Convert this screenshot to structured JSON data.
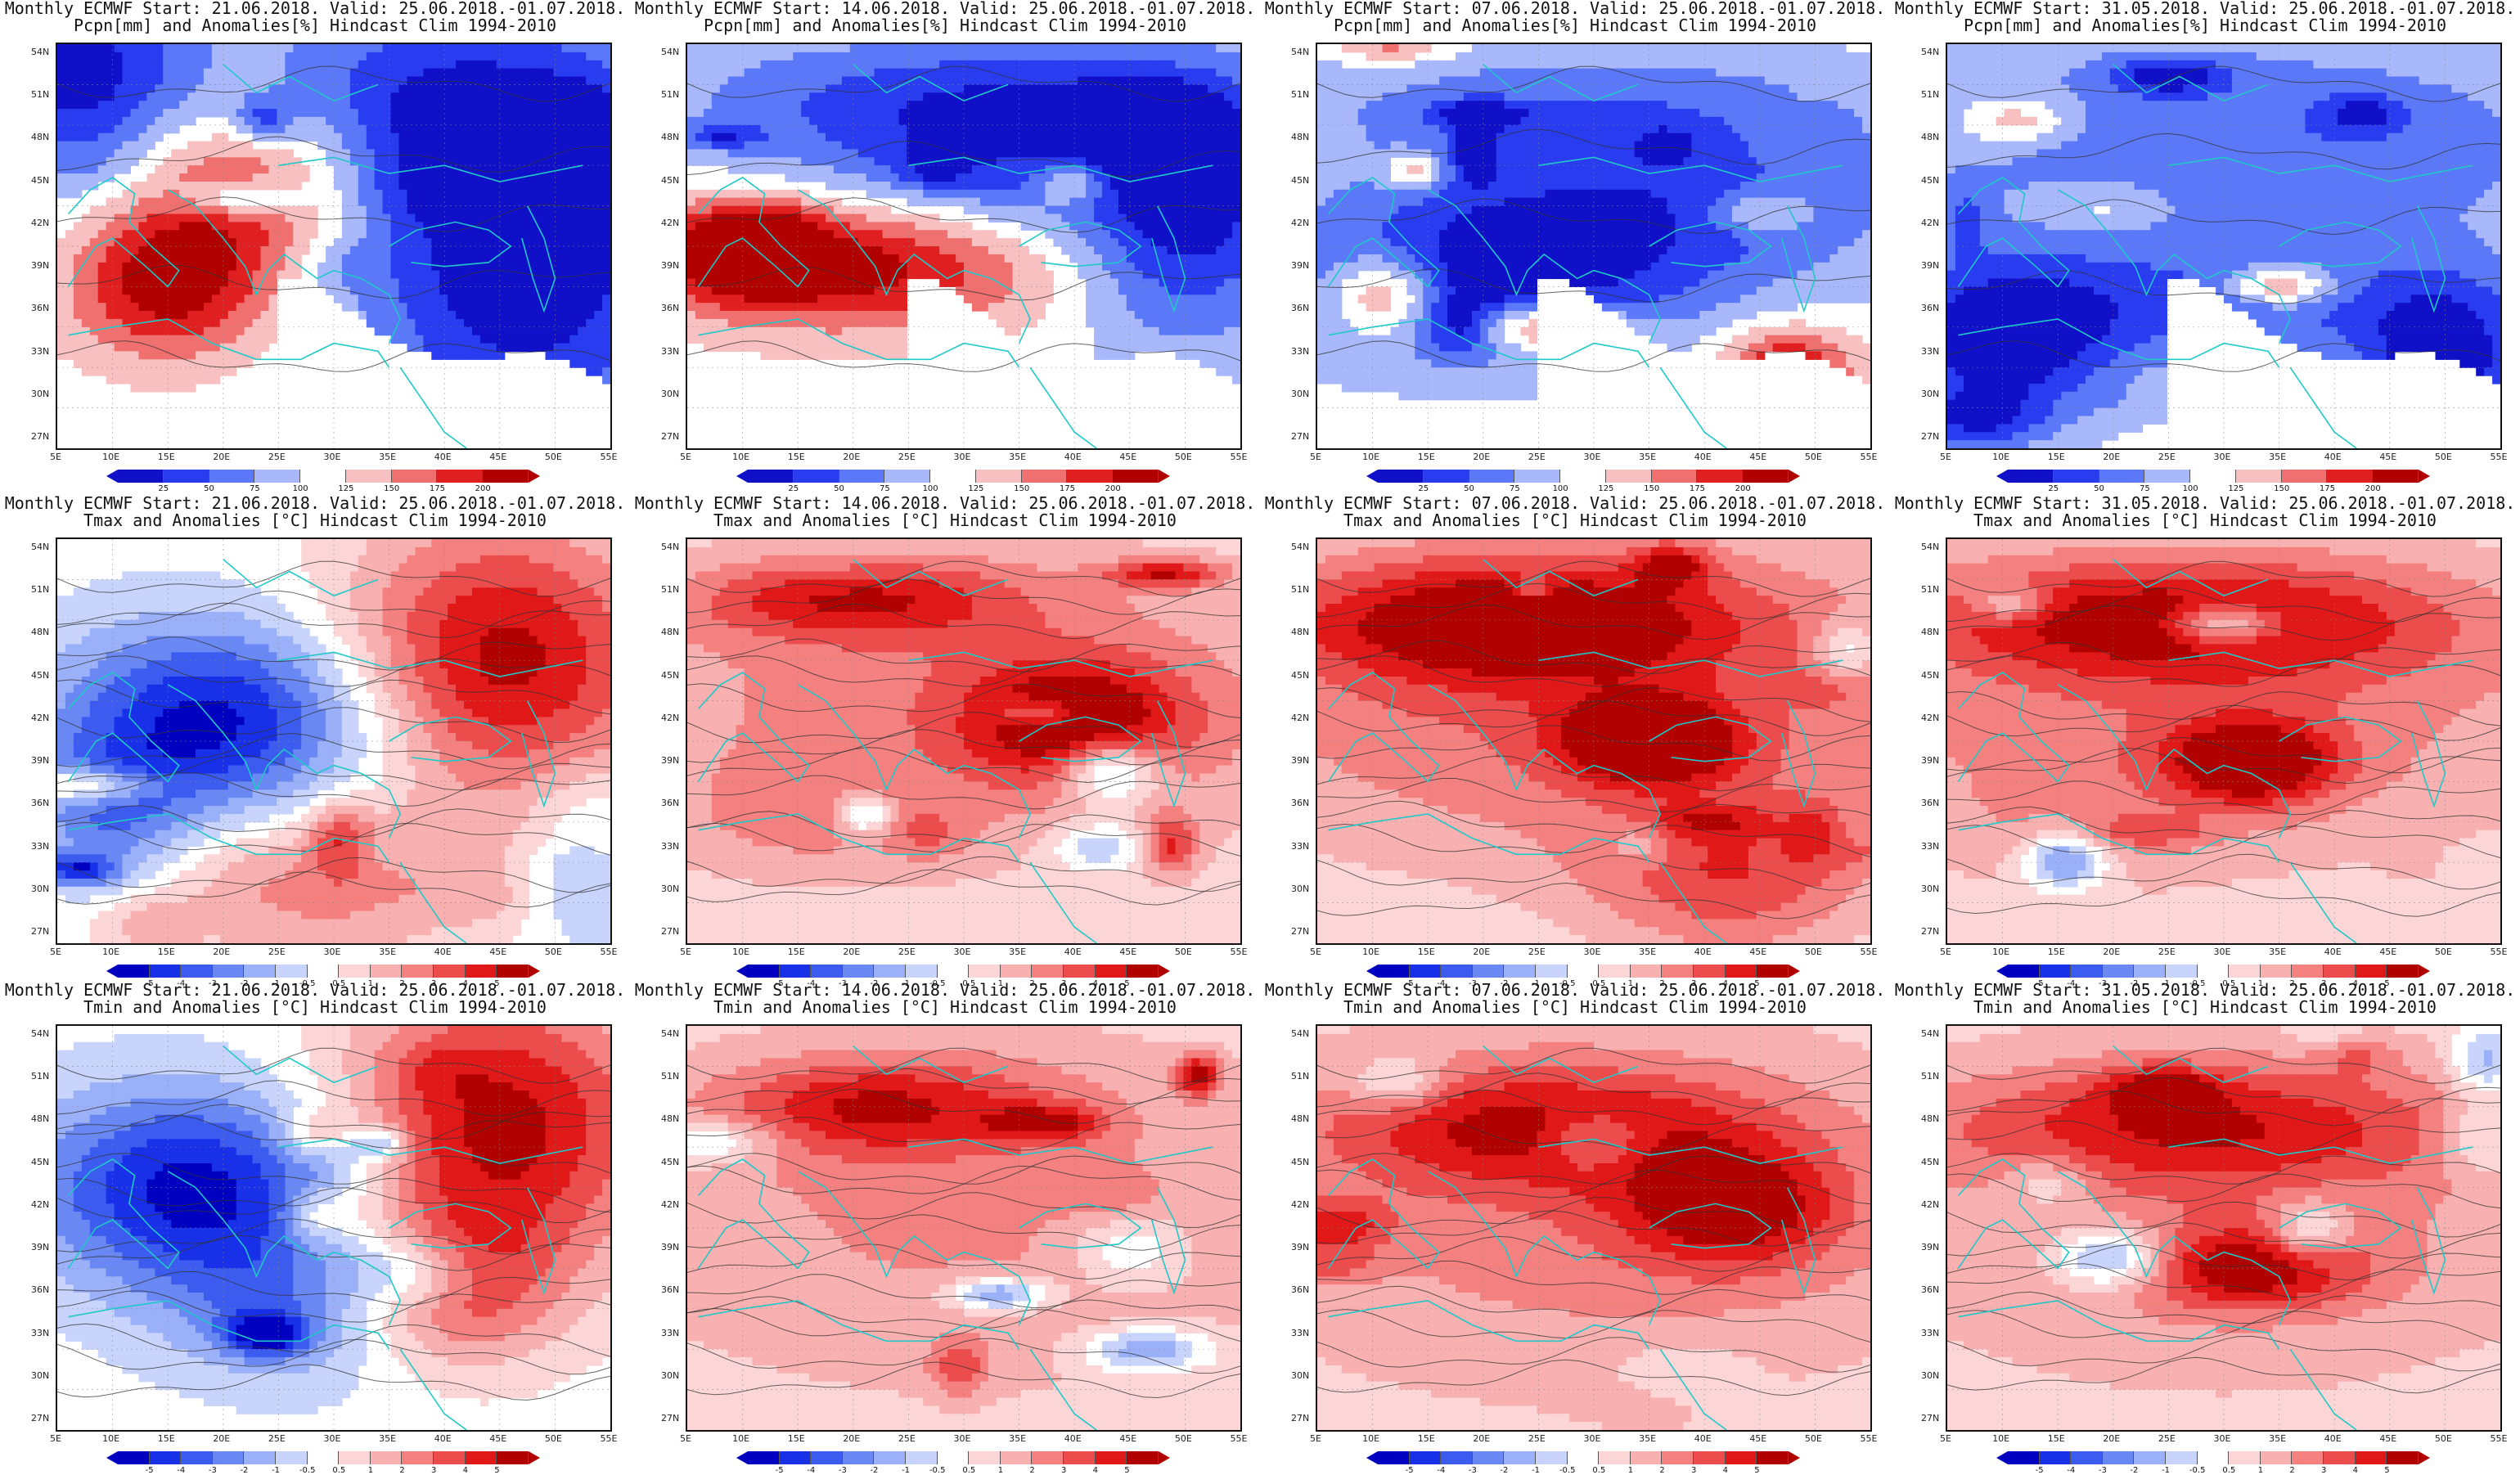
{
  "rows": [
    {
      "variable_line": "Pcpn[mm] and Anomalies[%] Hindcast Clim 1994-2010",
      "colorbar_ticks": [
        "25",
        "50",
        "75",
        "100",
        "125",
        "150",
        "175",
        "200"
      ],
      "colorbar_colors": [
        "#1010c8",
        "#2a3cf0",
        "#5a78f8",
        "#a8b8fa",
        "#ffffff",
        "#f8c0c0",
        "#f07070",
        "#e02020",
        "#b00000"
      ],
      "scheme": "precip"
    },
    {
      "variable_line": "Tmax and Anomalies [°C] Hindcast Clim 1994-2010",
      "colorbar_ticks": [
        "-5",
        "-4",
        "-3",
        "-2",
        "-1",
        "-0.5",
        "0.5",
        "1",
        "2",
        "3",
        "4",
        "5"
      ],
      "colorbar_colors": [
        "#0000c0",
        "#1830e8",
        "#3c5cf0",
        "#6a88f4",
        "#9ab0f8",
        "#c8d4fb",
        "#ffffff",
        "#fcd6d6",
        "#f8b0b0",
        "#f48080",
        "#ec4c4c",
        "#e01818",
        "#b00000"
      ],
      "scheme": "temp"
    },
    {
      "variable_line": "Tmin and Anomalies [°C] Hindcast Clim 1994-2010",
      "colorbar_ticks": [
        "-5",
        "-4",
        "-3",
        "-2",
        "-1",
        "-0.5",
        "0.5",
        "1",
        "2",
        "3",
        "4",
        "5"
      ],
      "colorbar_colors": [
        "#0000c0",
        "#1830e8",
        "#3c5cf0",
        "#6a88f4",
        "#9ab0f8",
        "#c8d4fb",
        "#ffffff",
        "#fcd6d6",
        "#f8b0b0",
        "#f48080",
        "#ec4c4c",
        "#e01818",
        "#b00000"
      ],
      "scheme": "temp"
    }
  ],
  "columns": [
    {
      "start_line": "Monthly ECMWF Start: 21.06.2018. Valid: 25.06.2018.-01.07.2018."
    },
    {
      "start_line": "Monthly ECMWF Start: 14.06.2018. Valid: 25.06.2018.-01.07.2018."
    },
    {
      "start_line": "Monthly ECMWF Start: 07.06.2018. Valid: 25.06.2018.-01.07.2018."
    },
    {
      "start_line": "Monthly ECMWF Start: 31.05.2018. Valid: 25.06.2018.-01.07.2018."
    }
  ],
  "latitude_labels": [
    "54N",
    "51N",
    "48N",
    "45N",
    "42N",
    "39N",
    "36N",
    "33N",
    "30N",
    "27N"
  ],
  "longitude_labels": [
    "5E",
    "10E",
    "15E",
    "20E",
    "25E",
    "30E",
    "35E",
    "40E",
    "45E",
    "50E",
    "55E"
  ],
  "map_colors": {
    "coast": "#20c8c8",
    "contour": "#333333",
    "grid": "#888888"
  }
}
